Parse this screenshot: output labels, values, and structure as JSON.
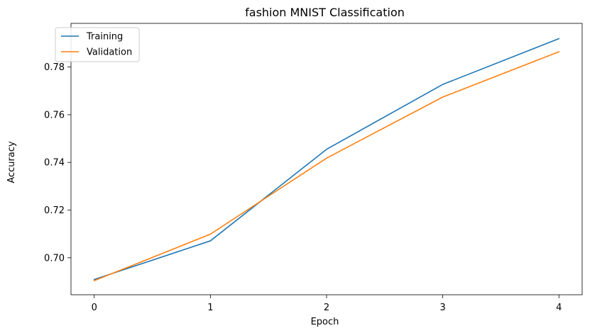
{
  "chart_data": {
    "type": "line",
    "title": "fashion MNIST Classification",
    "xlabel": "Epoch",
    "ylabel": "Accuracy",
    "x": [
      0,
      1,
      2,
      3,
      4
    ],
    "series": [
      {
        "name": "Training",
        "color": "#1f77b4",
        "values": [
          0.6909,
          0.7071,
          0.7455,
          0.7727,
          0.7919
        ]
      },
      {
        "name": "Validation",
        "color": "#ff7f0e",
        "values": [
          0.6904,
          0.7099,
          0.7418,
          0.7674,
          0.7864
        ]
      }
    ],
    "xlim": [
      -0.2,
      4.2
    ],
    "ylim": [
      0.6845,
      0.7983
    ],
    "xticks": [
      "0",
      "1",
      "2",
      "3",
      "4"
    ],
    "yticks": [
      "0.70",
      "0.72",
      "0.74",
      "0.76",
      "0.78"
    ],
    "ytick_values": [
      0.7,
      0.72,
      0.74,
      0.76,
      0.78
    ],
    "grid": false,
    "legend_position": "top-left"
  }
}
